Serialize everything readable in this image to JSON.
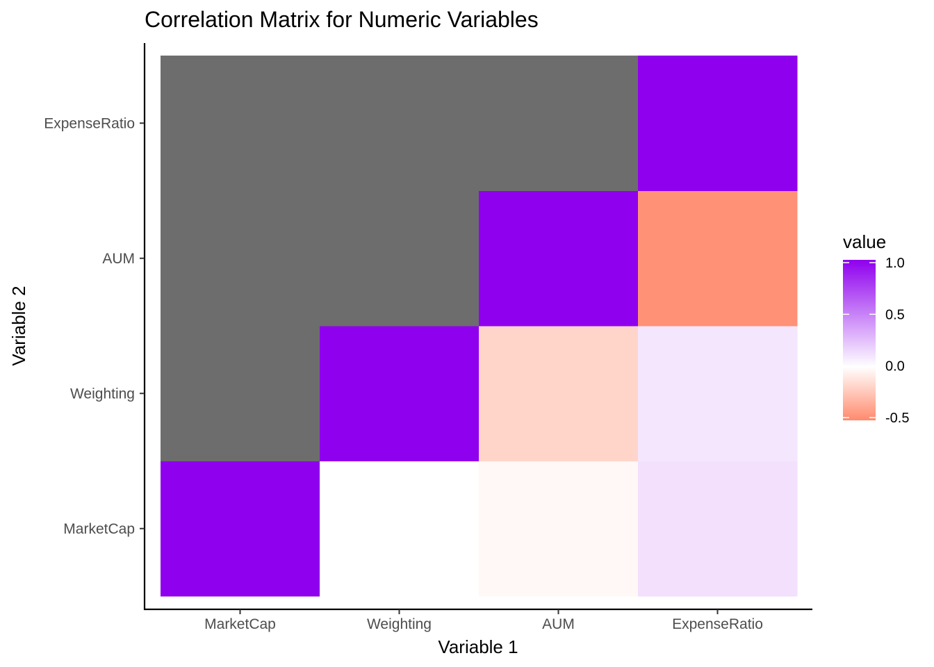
{
  "chart_data": {
    "type": "heatmap",
    "title": "Correlation Matrix for Numeric Variables",
    "xlabel": "Variable 1",
    "ylabel": "Variable 2",
    "x_categories": [
      "MarketCap",
      "Weighting",
      "AUM",
      "ExpenseRatio"
    ],
    "y_categories": [
      "MarketCap",
      "Weighting",
      "AUM",
      "ExpenseRatio"
    ],
    "cells": [
      {
        "x": "MarketCap",
        "y": "MarketCap",
        "value": 1.0
      },
      {
        "x": "Weighting",
        "y": "MarketCap",
        "value": 0.0
      },
      {
        "x": "AUM",
        "y": "MarketCap",
        "value": -0.03
      },
      {
        "x": "ExpenseRatio",
        "y": "MarketCap",
        "value": 0.12
      },
      {
        "x": "MarketCap",
        "y": "Weighting",
        "value": null
      },
      {
        "x": "Weighting",
        "y": "Weighting",
        "value": 1.0
      },
      {
        "x": "AUM",
        "y": "Weighting",
        "value": -0.18
      },
      {
        "x": "ExpenseRatio",
        "y": "Weighting",
        "value": 0.1
      },
      {
        "x": "MarketCap",
        "y": "AUM",
        "value": null
      },
      {
        "x": "Weighting",
        "y": "AUM",
        "value": null
      },
      {
        "x": "AUM",
        "y": "AUM",
        "value": 1.0
      },
      {
        "x": "ExpenseRatio",
        "y": "AUM",
        "value": -0.47
      },
      {
        "x": "MarketCap",
        "y": "ExpenseRatio",
        "value": null
      },
      {
        "x": "Weighting",
        "y": "ExpenseRatio",
        "value": null
      },
      {
        "x": "AUM",
        "y": "ExpenseRatio",
        "value": null
      },
      {
        "x": "ExpenseRatio",
        "y": "ExpenseRatio",
        "value": 1.0
      }
    ],
    "na_color": "#6d6d6d",
    "color_scale": {
      "low": "#ff8a6d",
      "mid": "#ffffff",
      "high": "#8f00ee",
      "midpoint": 0.0,
      "limits": [
        -0.5,
        1.0
      ]
    },
    "legend": {
      "title": "value",
      "ticks": [
        1.0,
        0.5,
        0.0,
        -0.5
      ],
      "tick_labels": [
        "1.0",
        "0.5",
        "0.0",
        "-0.5"
      ],
      "position": "right"
    },
    "grid": false
  }
}
